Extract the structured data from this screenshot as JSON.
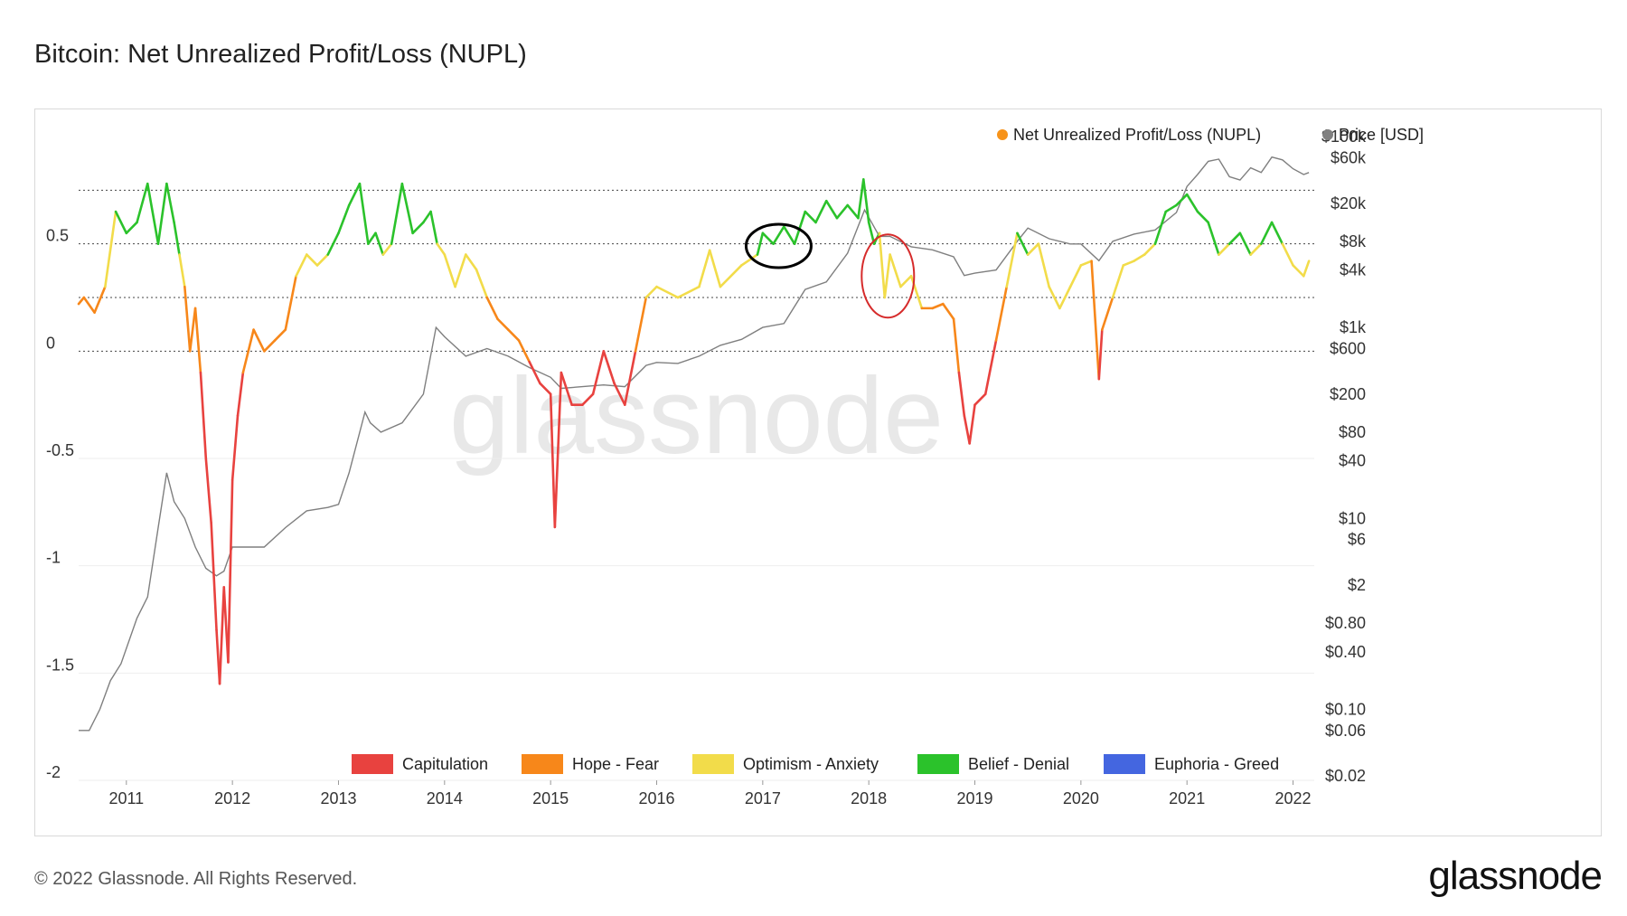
{
  "title": "Bitcoin: Net Unrealized Profit/Loss (NUPL)",
  "footer": "© 2022 Glassnode. All Rights Reserved.",
  "brand": "glassnode",
  "watermark": "glassnode",
  "chart_data": {
    "type": "line",
    "title": "Bitcoin: Net Unrealized Profit/Loss (NUPL)",
    "legend": [
      {
        "name": "Net Unrealized Profit/Loss (NUPL)",
        "color": "#f7931a"
      },
      {
        "name": "Price [USD]",
        "color": "#808080"
      }
    ],
    "legend_placement": "top-right",
    "zones": [
      {
        "name": "Capitulation",
        "color": "#e8423f",
        "range": [
          -2,
          0
        ]
      },
      {
        "name": "Hope - Fear",
        "color": "#f7871a",
        "range": [
          0,
          0.25
        ]
      },
      {
        "name": "Optimism - Anxiety",
        "color": "#f2dc4a",
        "range": [
          0.25,
          0.5
        ]
      },
      {
        "name": "Belief - Denial",
        "color": "#2bc22b",
        "range": [
          0.5,
          0.75
        ]
      },
      {
        "name": "Euphoria - Greed",
        "color": "#4466e0",
        "range": [
          0.75,
          1
        ]
      }
    ],
    "zones_legend_placement": "bottom-center",
    "x_ticks": [
      "2011",
      "2012",
      "2013",
      "2014",
      "2015",
      "2016",
      "2017",
      "2018",
      "2019",
      "2020",
      "2021",
      "2022"
    ],
    "xlim": [
      2010.55,
      2022.2
    ],
    "y_left_ticks": [
      "0.5",
      "0",
      "-0.5",
      "-1",
      "-1.5",
      "-2"
    ],
    "y_left_values": [
      0.5,
      0,
      -0.5,
      -1,
      -1.5,
      -2
    ],
    "ylim_left": [
      -2,
      1
    ],
    "y_right_ticks": [
      "$100k",
      "$60k",
      "$20k",
      "$8k",
      "$4k",
      "$1k",
      "$600",
      "$200",
      "$80",
      "$40",
      "$10",
      "$6",
      "$2",
      "$0.80",
      "$0.40",
      "$0.10",
      "$0.06",
      "$0.02"
    ],
    "y_right_values": [
      100000,
      60000,
      20000,
      8000,
      4000,
      1000,
      600,
      200,
      80,
      40,
      10,
      6,
      2,
      0.8,
      0.4,
      0.1,
      0.06,
      0.02
    ],
    "y_right_scale": "log",
    "ylim_right": [
      0.018,
      100000
    ],
    "dotted_reference_lines": [
      0.75,
      0.5,
      0.25,
      0
    ],
    "grid": true,
    "nupl": {
      "x": [
        2010.55,
        2010.6,
        2010.7,
        2010.8,
        2010.9,
        2011.0,
        2011.1,
        2011.2,
        2011.3,
        2011.38,
        2011.45,
        2011.5,
        2011.55,
        2011.6,
        2011.65,
        2011.7,
        2011.75,
        2011.8,
        2011.85,
        2011.88,
        2011.92,
        2011.96,
        2012.0,
        2012.05,
        2012.1,
        2012.2,
        2012.3,
        2012.4,
        2012.5,
        2012.6,
        2012.7,
        2012.8,
        2012.9,
        2013.0,
        2013.1,
        2013.2,
        2013.28,
        2013.35,
        2013.42,
        2013.5,
        2013.6,
        2013.7,
        2013.8,
        2013.87,
        2013.93,
        2014.0,
        2014.1,
        2014.2,
        2014.3,
        2014.4,
        2014.5,
        2014.6,
        2014.7,
        2014.8,
        2014.9,
        2015.0,
        2015.04,
        2015.1,
        2015.2,
        2015.3,
        2015.4,
        2015.5,
        2015.6,
        2015.7,
        2015.8,
        2015.9,
        2016.0,
        2016.2,
        2016.4,
        2016.5,
        2016.6,
        2016.8,
        2016.95,
        2017.0,
        2017.1,
        2017.2,
        2017.3,
        2017.4,
        2017.5,
        2017.6,
        2017.7,
        2017.8,
        2017.9,
        2017.95,
        2018.0,
        2018.05,
        2018.1,
        2018.15,
        2018.2,
        2018.3,
        2018.4,
        2018.5,
        2018.6,
        2018.7,
        2018.8,
        2018.85,
        2018.9,
        2018.95,
        2019.0,
        2019.1,
        2019.2,
        2019.3,
        2019.4,
        2019.5,
        2019.6,
        2019.7,
        2019.8,
        2019.9,
        2020.0,
        2020.1,
        2020.17,
        2020.2,
        2020.3,
        2020.4,
        2020.5,
        2020.6,
        2020.7,
        2020.8,
        2020.9,
        2021.0,
        2021.1,
        2021.2,
        2021.3,
        2021.4,
        2021.5,
        2021.6,
        2021.7,
        2021.8,
        2021.9,
        2022.0,
        2022.1,
        2022.15
      ],
      "y": [
        0.22,
        0.25,
        0.18,
        0.3,
        0.65,
        0.55,
        0.6,
        0.78,
        0.5,
        0.78,
        0.6,
        0.45,
        0.3,
        0.0,
        0.2,
        -0.1,
        -0.5,
        -0.8,
        -1.3,
        -1.55,
        -1.1,
        -1.45,
        -0.6,
        -0.3,
        -0.1,
        0.1,
        0.0,
        0.05,
        0.1,
        0.35,
        0.45,
        0.4,
        0.45,
        0.55,
        0.68,
        0.78,
        0.5,
        0.55,
        0.45,
        0.5,
        0.78,
        0.55,
        0.6,
        0.65,
        0.5,
        0.45,
        0.3,
        0.45,
        0.38,
        0.25,
        0.15,
        0.1,
        0.05,
        -0.05,
        -0.15,
        -0.2,
        -0.82,
        -0.1,
        -0.25,
        -0.25,
        -0.2,
        0.0,
        -0.15,
        -0.25,
        0.0,
        0.25,
        0.3,
        0.25,
        0.3,
        0.47,
        0.3,
        0.4,
        0.45,
        0.55,
        0.5,
        0.58,
        0.5,
        0.65,
        0.6,
        0.7,
        0.62,
        0.68,
        0.62,
        0.8,
        0.6,
        0.5,
        0.55,
        0.25,
        0.45,
        0.3,
        0.35,
        0.2,
        0.2,
        0.22,
        0.15,
        -0.1,
        -0.3,
        -0.43,
        -0.25,
        -0.2,
        0.05,
        0.3,
        0.55,
        0.45,
        0.5,
        0.3,
        0.2,
        0.3,
        0.4,
        0.42,
        -0.13,
        0.1,
        0.25,
        0.4,
        0.42,
        0.45,
        0.5,
        0.65,
        0.68,
        0.73,
        0.65,
        0.6,
        0.45,
        0.5,
        0.55,
        0.45,
        0.5,
        0.6,
        0.5,
        0.4,
        0.35,
        0.42
      ]
    },
    "price": {
      "x": [
        2010.55,
        2010.65,
        2010.75,
        2010.85,
        2010.95,
        2011.1,
        2011.2,
        2011.3,
        2011.38,
        2011.45,
        2011.55,
        2011.65,
        2011.75,
        2011.85,
        2011.92,
        2012.0,
        2012.1,
        2012.3,
        2012.5,
        2012.7,
        2012.9,
        2013.0,
        2013.1,
        2013.25,
        2013.3,
        2013.4,
        2013.6,
        2013.8,
        2013.92,
        2014.0,
        2014.2,
        2014.4,
        2014.6,
        2014.8,
        2015.0,
        2015.1,
        2015.3,
        2015.5,
        2015.7,
        2015.9,
        2016.0,
        2016.2,
        2016.4,
        2016.6,
        2016.8,
        2017.0,
        2017.2,
        2017.4,
        2017.6,
        2017.8,
        2017.96,
        2018.1,
        2018.2,
        2018.4,
        2018.6,
        2018.8,
        2018.9,
        2019.0,
        2019.2,
        2019.4,
        2019.5,
        2019.7,
        2019.9,
        2020.0,
        2020.17,
        2020.3,
        2020.5,
        2020.7,
        2020.9,
        2021.0,
        2021.1,
        2021.2,
        2021.3,
        2021.4,
        2021.5,
        2021.6,
        2021.7,
        2021.8,
        2021.9,
        2022.0,
        2022.1,
        2022.15
      ],
      "y": [
        0.06,
        0.06,
        0.1,
        0.2,
        0.3,
        0.9,
        1.5,
        8,
        30,
        15,
        10,
        5,
        3,
        2.5,
        2.8,
        5,
        5,
        5,
        8,
        12,
        13,
        14,
        30,
        130,
        100,
        80,
        100,
        200,
        1000,
        800,
        500,
        600,
        500,
        380,
        300,
        230,
        240,
        250,
        240,
        400,
        430,
        420,
        500,
        650,
        750,
        1000,
        1100,
        2500,
        3000,
        6000,
        17000,
        9000,
        9000,
        7000,
        6500,
        5500,
        3500,
        3700,
        4000,
        8000,
        11000,
        8500,
        7500,
        7500,
        5000,
        8000,
        9500,
        10500,
        16000,
        30000,
        40000,
        55000,
        58000,
        38000,
        35000,
        47000,
        42000,
        61000,
        57000,
        46000,
        40000,
        42000
      ]
    },
    "annotations": [
      {
        "shape": "ellipse",
        "color": "#000000",
        "x": 2017.15,
        "y": 0.49
      },
      {
        "shape": "ellipse",
        "color": "#d62b2b",
        "x": 2018.18,
        "y": 0.35
      }
    ]
  }
}
